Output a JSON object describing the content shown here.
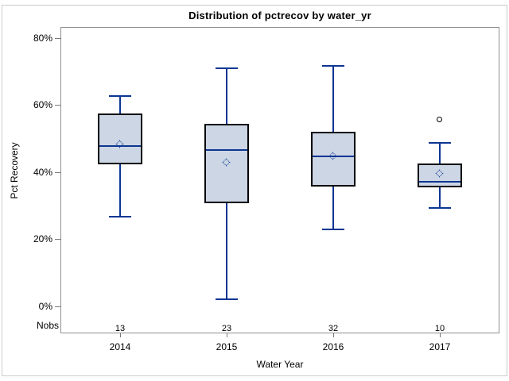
{
  "title": "Distribution of pctrecov by water_yr",
  "y_axis": {
    "label": "Pct Recovery",
    "ticks": [
      "0%",
      "20%",
      "40%",
      "60%",
      "80%"
    ],
    "tick_values": [
      0,
      20,
      40,
      60,
      80
    ]
  },
  "x_axis": {
    "label": "Water Year"
  },
  "nobs_label": "Nobs",
  "colors": {
    "box_fill": "#ccd6e4",
    "line_blue": "#0d3692",
    "box_outline": "#000000",
    "outlier_outline": "#000000",
    "wall_border": "#8f8f8f",
    "outer_border": "#cccccc",
    "text": "#000000"
  },
  "chart_data": {
    "type": "boxplot",
    "title": "Distribution of pctrecov by water_yr",
    "xlabel": "Water Year",
    "ylabel": "Pct Recovery",
    "ylim": [
      0,
      80
    ],
    "y_tick_format": "percent",
    "grid": false,
    "categories": [
      "2014",
      "2015",
      "2016",
      "2017"
    ],
    "groups": [
      {
        "year": "2014",
        "nobs": "13",
        "whisker_low": 26.7,
        "q1": 42.3,
        "median": 47.8,
        "q3": 57.5,
        "whisker_high": 62.6,
        "mean": 48.2,
        "outliers": []
      },
      {
        "year": "2015",
        "nobs": "23",
        "whisker_low": 1.9,
        "q1": 30.7,
        "median": 46.6,
        "q3": 54.4,
        "whisker_high": 70.9,
        "mean": 42.8,
        "outliers": []
      },
      {
        "year": "2016",
        "nobs": "32",
        "whisker_low": 22.9,
        "q1": 35.7,
        "median": 44.7,
        "q3": 52.0,
        "whisker_high": 71.8,
        "mean": 44.6,
        "outliers": []
      },
      {
        "year": "2017",
        "nobs": "10",
        "whisker_low": 29.3,
        "q1": 35.4,
        "median": 37.2,
        "q3": 42.6,
        "whisker_high": 48.7,
        "mean": 39.4,
        "outliers": [
          55.6
        ]
      }
    ]
  }
}
